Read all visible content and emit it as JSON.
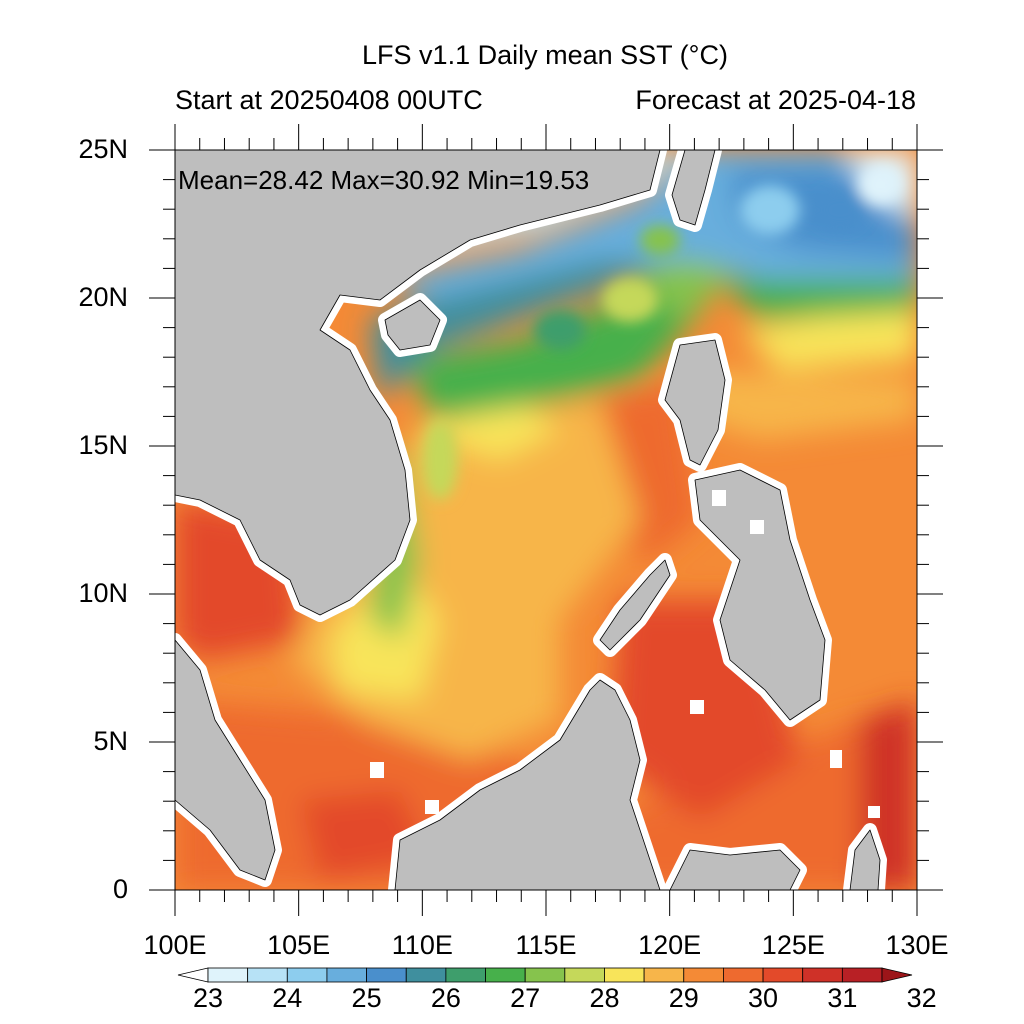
{
  "title": "LFS v1.1 Daily mean SST (°C)",
  "subtitle_left": "Start at 20250408 00UTC",
  "subtitle_right": "Forecast at 2025-04-18",
  "stats": "Mean=28.42  Max=30.92  Min=19.53",
  "map": {
    "lon_range": [
      100,
      130
    ],
    "lat_range": [
      0,
      25
    ],
    "x_ticks": [
      "100E",
      "105E",
      "110E",
      "115E",
      "120E",
      "125E",
      "130E"
    ],
    "y_ticks": [
      "0",
      "5N",
      "10N",
      "15N",
      "20N",
      "25N"
    ],
    "land_color": "#bebebe",
    "coast_halo_color": "#ffffff"
  },
  "colorbar": {
    "labels": [
      "23",
      "24",
      "25",
      "26",
      "27",
      "28",
      "29",
      "30",
      "31",
      "32"
    ],
    "colors": [
      "#ffffff",
      "#dff3fb",
      "#b7e2f6",
      "#8dcdee",
      "#68aedd",
      "#4a8fcc",
      "#3f8f9e",
      "#3e9e6c",
      "#47b04b",
      "#86c34d",
      "#c5d85a",
      "#f8e45a",
      "#f7b54a",
      "#f48a36",
      "#ee6a2f",
      "#e34a2a",
      "#cf3128",
      "#b82025",
      "#9c1519"
    ]
  }
}
